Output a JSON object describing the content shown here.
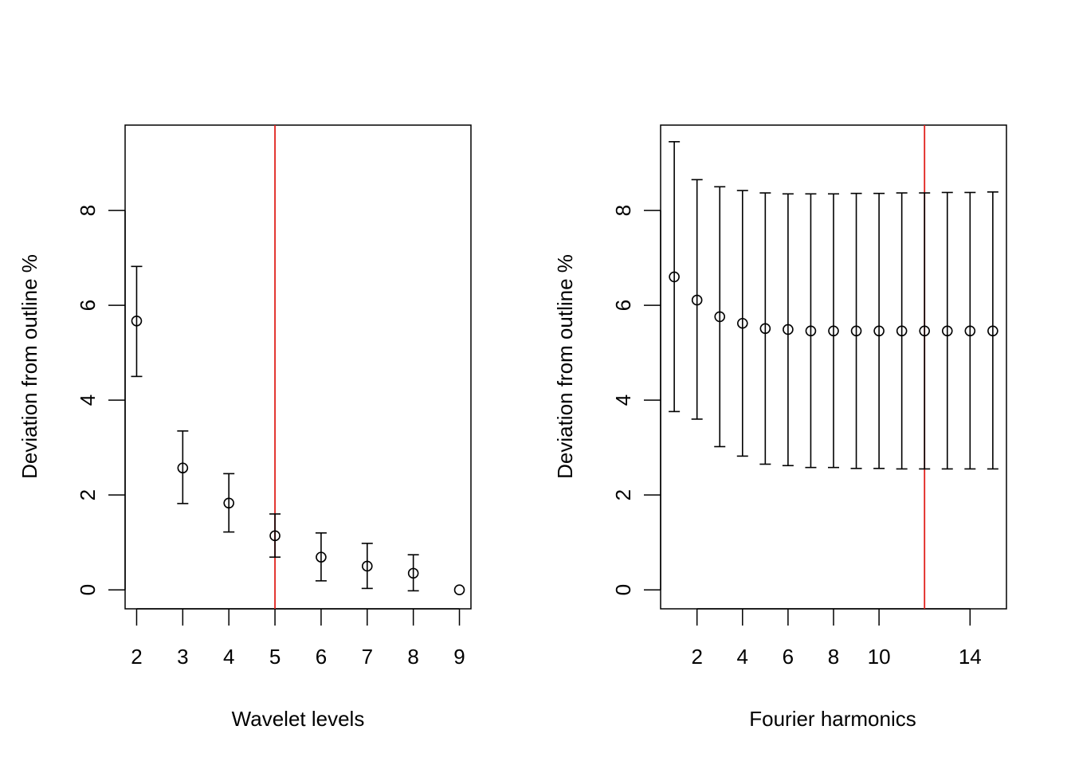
{
  "chart_data": [
    {
      "type": "scatter",
      "subtype": "errorbar",
      "title": "",
      "xlabel": "Wavelet levels",
      "ylabel": "Deviation from outline %",
      "xlim": [
        1.75,
        9.25
      ],
      "ylim": [
        -0.4,
        9.8
      ],
      "xticks": [
        2,
        3,
        4,
        5,
        6,
        7,
        8,
        9
      ],
      "yticks": [
        0,
        2,
        4,
        6,
        8
      ],
      "vline": 5,
      "vline_color": "#e0201b",
      "points": [
        {
          "x": 2,
          "y": 5.67,
          "lo": 4.5,
          "hi": 6.82
        },
        {
          "x": 3,
          "y": 2.57,
          "lo": 1.82,
          "hi": 3.35
        },
        {
          "x": 4,
          "y": 1.83,
          "lo": 1.22,
          "hi": 2.45
        },
        {
          "x": 5,
          "y": 1.14,
          "lo": 0.69,
          "hi": 1.6
        },
        {
          "x": 6,
          "y": 0.69,
          "lo": 0.19,
          "hi": 1.2
        },
        {
          "x": 7,
          "y": 0.5,
          "lo": 0.03,
          "hi": 0.98
        },
        {
          "x": 8,
          "y": 0.35,
          "lo": -0.02,
          "hi": 0.74
        },
        {
          "x": 9,
          "y": 0.0,
          "lo": 0.0,
          "hi": 0.0
        }
      ]
    },
    {
      "type": "scatter",
      "subtype": "errorbar",
      "title": "",
      "xlabel": "Fourier harmonics",
      "ylabel": "Deviation from outline %",
      "xlim": [
        0.4,
        15.6
      ],
      "ylim": [
        -0.4,
        9.8
      ],
      "xticks": [
        2,
        4,
        6,
        8,
        10,
        14
      ],
      "yticks": [
        0,
        2,
        4,
        6,
        8
      ],
      "vline": 12,
      "vline_color": "#e0201b",
      "points": [
        {
          "x": 1,
          "y": 6.6,
          "lo": 3.76,
          "hi": 9.45
        },
        {
          "x": 2,
          "y": 6.11,
          "lo": 3.6,
          "hi": 8.65
        },
        {
          "x": 3,
          "y": 5.76,
          "lo": 3.02,
          "hi": 8.5
        },
        {
          "x": 4,
          "y": 5.62,
          "lo": 2.82,
          "hi": 8.42
        },
        {
          "x": 5,
          "y": 5.51,
          "lo": 2.65,
          "hi": 8.37
        },
        {
          "x": 6,
          "y": 5.49,
          "lo": 2.62,
          "hi": 8.35
        },
        {
          "x": 7,
          "y": 5.46,
          "lo": 2.58,
          "hi": 8.35
        },
        {
          "x": 8,
          "y": 5.46,
          "lo": 2.58,
          "hi": 8.35
        },
        {
          "x": 9,
          "y": 5.46,
          "lo": 2.56,
          "hi": 8.36
        },
        {
          "x": 10,
          "y": 5.46,
          "lo": 2.56,
          "hi": 8.36
        },
        {
          "x": 11,
          "y": 5.46,
          "lo": 2.55,
          "hi": 8.37
        },
        {
          "x": 12,
          "y": 5.46,
          "lo": 2.55,
          "hi": 8.37
        },
        {
          "x": 13,
          "y": 5.46,
          "lo": 2.55,
          "hi": 8.38
        },
        {
          "x": 14,
          "y": 5.46,
          "lo": 2.55,
          "hi": 8.38
        },
        {
          "x": 15,
          "y": 5.46,
          "lo": 2.55,
          "hi": 8.39
        }
      ]
    }
  ]
}
